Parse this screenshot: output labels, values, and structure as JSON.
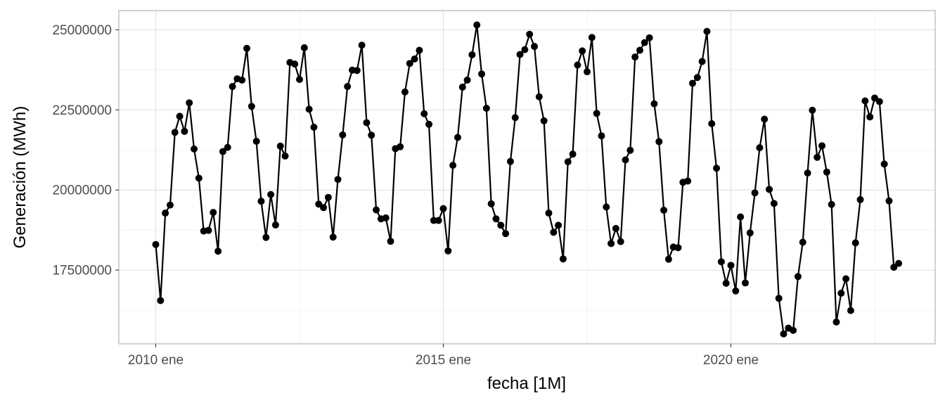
{
  "chart_data": {
    "type": "line",
    "title": "",
    "xlabel": "fecha [1M]",
    "ylabel": "Generación (MWh)",
    "x_tick_labels": [
      "2010 ene",
      "2015 ene",
      "2020 ene"
    ],
    "y_tick_labels": [
      "17500000",
      "20000000",
      "22500000",
      "25000000"
    ],
    "y_ticks": [
      17500000,
      20000000,
      22500000,
      25000000
    ],
    "ylim": [
      15200000,
      25600000
    ],
    "x_start": "2010-01",
    "x_end": "2022-12",
    "grid": true,
    "markers": true,
    "line_color": "#000000",
    "series": [
      {
        "values": [
          18300000,
          16550000,
          19280000,
          19530000,
          21800000,
          22300000,
          21830000,
          22720000,
          21280000,
          20370000,
          18720000,
          18740000,
          19300000,
          18090000,
          21200000,
          21330000,
          23230000,
          23470000,
          23430000,
          24420000,
          22610000,
          21520000,
          19650000,
          18520000,
          19860000,
          18910000,
          21370000,
          21060000,
          23980000,
          23930000,
          23450000,
          24440000,
          22520000,
          21960000,
          19560000,
          19450000,
          19770000,
          18530000,
          20330000,
          21720000,
          23230000,
          23740000,
          23730000,
          24520000,
          22100000,
          21710000,
          19380000,
          19100000,
          19130000,
          18400000,
          21290000,
          21350000,
          23060000,
          23950000,
          24090000,
          24360000,
          22380000,
          22050000,
          19050000,
          19050000,
          19420000,
          18100000,
          20770000,
          21640000,
          23210000,
          23430000,
          24220000,
          25150000,
          23620000,
          22550000,
          19570000,
          19100000,
          18900000,
          18640000,
          20890000,
          22260000,
          24230000,
          24380000,
          24860000,
          24480000,
          22910000,
          22160000,
          19280000,
          18680000,
          18900000,
          17850000,
          20880000,
          21120000,
          23900000,
          24340000,
          23690000,
          24760000,
          22390000,
          21690000,
          19470000,
          18330000,
          18800000,
          18390000,
          20940000,
          21240000,
          24150000,
          24360000,
          24600000,
          24750000,
          22690000,
          21510000,
          19370000,
          17840000,
          18220000,
          18200000,
          20240000,
          20280000,
          23330000,
          23510000,
          24010000,
          24950000,
          22070000,
          20680000,
          17760000,
          17090000,
          17650000,
          16850000,
          19160000,
          17100000,
          18660000,
          19910000,
          21320000,
          22210000,
          20020000,
          19580000,
          16620000,
          15510000,
          15690000,
          15620000,
          17300000,
          18370000,
          20530000,
          22490000,
          21020000,
          21380000,
          20560000,
          19550000,
          15880000,
          16780000,
          17230000,
          16240000,
          18350000,
          19700000,
          22780000,
          22280000,
          22870000,
          22760000,
          20810000,
          19660000,
          17590000,
          17710000
        ]
      }
    ]
  }
}
